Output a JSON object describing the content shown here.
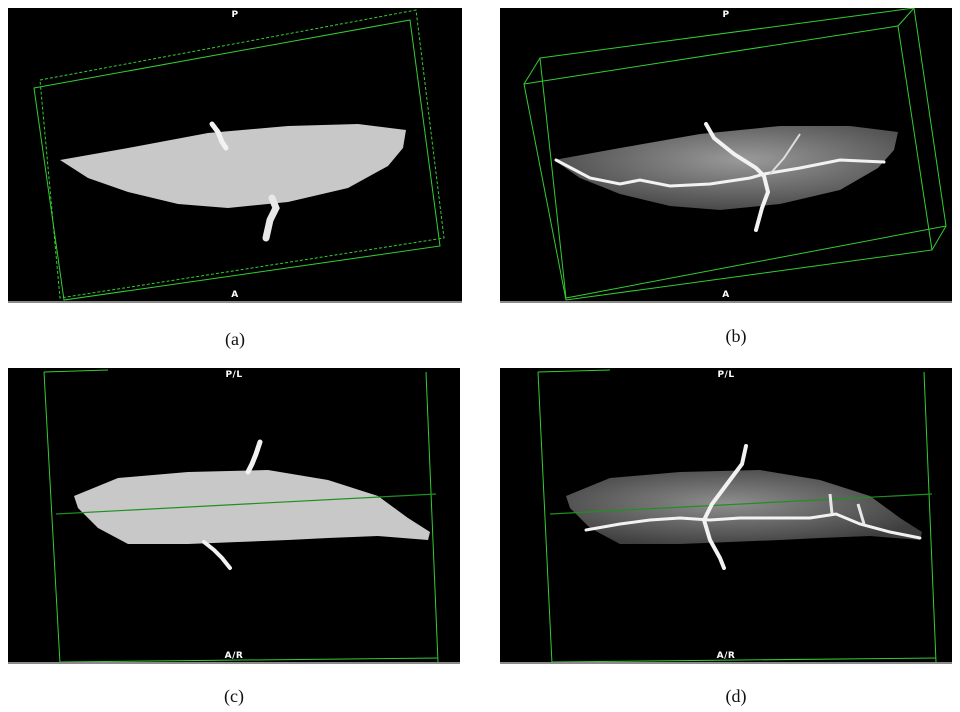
{
  "panels": [
    {
      "id": "a",
      "top_label": "P",
      "bottom_label": "A",
      "caption": "(a)"
    },
    {
      "id": "b",
      "top_label": "P",
      "bottom_label": "A",
      "caption": "(b)"
    },
    {
      "id": "c",
      "top_label": "P/L",
      "bottom_label": "A/R",
      "caption": "(c)"
    },
    {
      "id": "d",
      "top_label": "P/L",
      "bottom_label": "A/R",
      "caption": "(d)"
    }
  ],
  "colors": {
    "background": "#000000",
    "bounding_box": "#33cc33",
    "organ": "#c8c8c8",
    "vessels": "#f2f2f2"
  }
}
